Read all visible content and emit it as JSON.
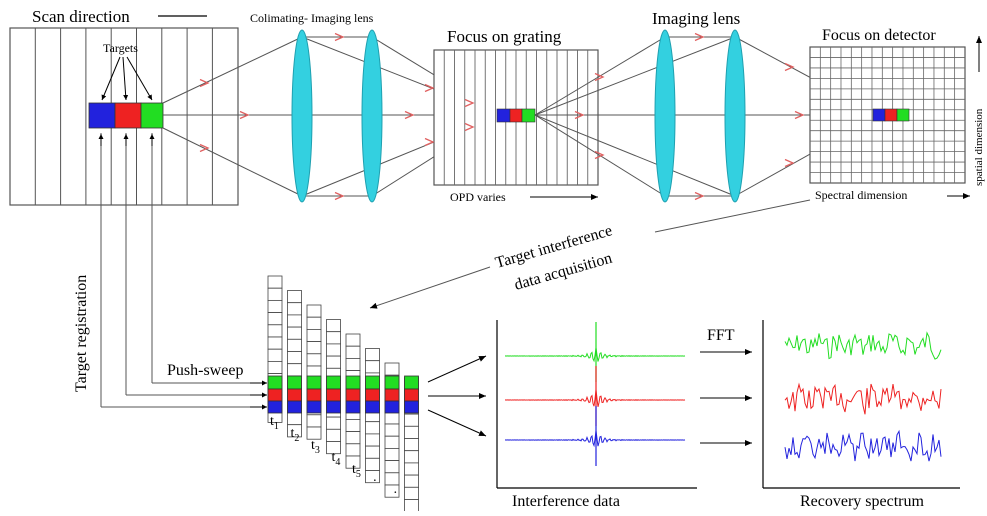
{
  "labels": {
    "scan_direction": "Scan direction",
    "targets": "Targets",
    "collimating_lens": "Colimating- Imaging lens",
    "focus_grating": "Focus on grating",
    "imaging_lens": "Imaging lens",
    "focus_detector": "Focus on detector",
    "spatial_dimension": "spatial dimension",
    "opd_varies": "OPD varies",
    "spectral_dimension": "Spectral dimension",
    "acq_line1": "Target interference",
    "acq_line2": "data acquisition",
    "target_registration": "Target registration",
    "push_sweep": "Push-sweep",
    "fft": "FFT",
    "interference_data": "Interference  data",
    "recovery_spectrum": "Recovery spectrum"
  },
  "time_labels": [
    {
      "base": "t",
      "sub": "1"
    },
    {
      "base": "t",
      "sub": "2"
    },
    {
      "base": "t",
      "sub": "3"
    },
    {
      "base": "t",
      "sub": "4"
    },
    {
      "base": "t",
      "sub": "5"
    },
    {
      "base": "·",
      "sub": ""
    },
    {
      "base": "·",
      "sub": ""
    }
  ],
  "colors": {
    "green": "#22dd22",
    "red": "#ee2222",
    "blue": "#2222dd",
    "lens": "#33d0e0",
    "ray_arrow": "#e06060",
    "line": "#555555"
  }
}
